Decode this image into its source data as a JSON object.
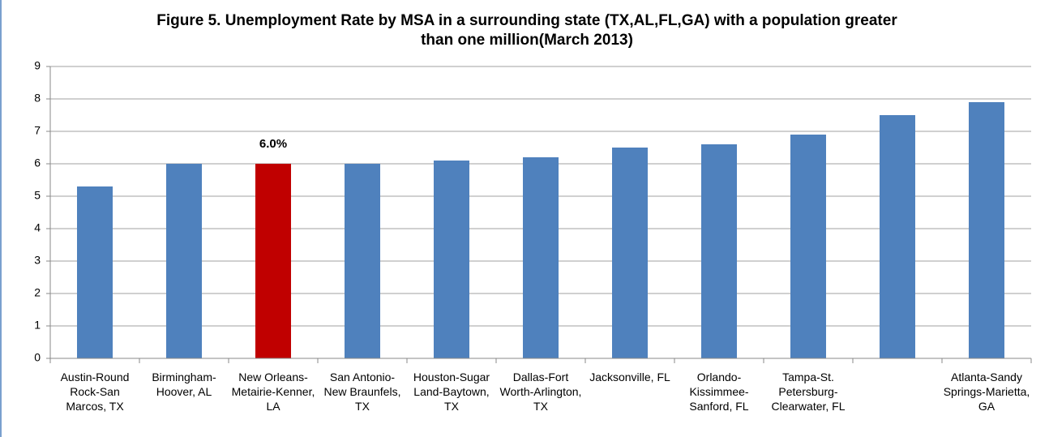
{
  "chart_data": {
    "type": "bar",
    "title": "Figure 5. Unemployment Rate by MSA in a surrounding state (TX,AL,FL,GA) with a population greater than one million(March 2013)",
    "categories": [
      "Austin-Round Rock-San Marcos, TX",
      "Birmingham-Hoover, AL",
      "New Orleans-Metairie-Kenner, LA",
      "San Antonio-New Braunfels, TX",
      "Houston-Sugar Land-Baytown, TX",
      "Dallas-Fort Worth-Arlington, TX",
      "Jacksonville, FL",
      "Orlando-Kissimmee-Sanford, FL",
      "Tampa-St. Petersburg-Clearwater, FL",
      null,
      "Atlanta-Sandy Springs-Marietta, GA"
    ],
    "values": [
      5.3,
      6.0,
      6.0,
      6.0,
      6.1,
      6.2,
      6.5,
      6.6,
      6.9,
      7.5,
      7.9
    ],
    "value_labels": [
      null,
      null,
      "6.0%",
      null,
      null,
      null,
      null,
      null,
      null,
      null,
      null
    ],
    "colors": [
      "#4f81bd",
      "#4f81bd",
      "#c00000",
      "#4f81bd",
      "#4f81bd",
      "#4f81bd",
      "#4f81bd",
      "#4f81bd",
      "#4f81bd",
      "#4f81bd",
      "#4f81bd"
    ],
    "ylim": [
      0,
      9
    ],
    "yticks": [
      0,
      1,
      2,
      3,
      4,
      5,
      6,
      7,
      8,
      9
    ],
    "grid": true
  }
}
